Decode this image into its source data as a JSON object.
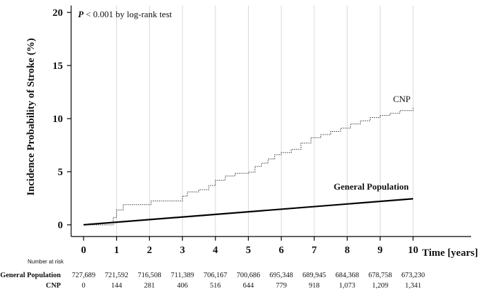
{
  "chart_data": {
    "type": "line",
    "title": "",
    "ylabel": "Incidence Probability of Stroke (%)",
    "xlabel": "Time [years]",
    "xlim": [
      0,
      10
    ],
    "ylim": [
      0,
      20
    ],
    "x_ticks": [
      0,
      1,
      2,
      3,
      4,
      5,
      6,
      7,
      8,
      9,
      10
    ],
    "y_ticks": [
      0,
      5,
      10,
      15,
      20
    ],
    "grid": "vertical",
    "annotation": {
      "p_italic": "P",
      "text": " < 0.001 by log-rank test"
    },
    "series": [
      {
        "name": "CNP",
        "style": "dotted-step",
        "color": "#333333",
        "points": [
          [
            0,
            0
          ],
          [
            0.5,
            0
          ],
          [
            0.9,
            0
          ],
          [
            0.9,
            0.7
          ],
          [
            1.0,
            0.7
          ],
          [
            1.0,
            1.4
          ],
          [
            1.2,
            1.4
          ],
          [
            1.2,
            1.9
          ],
          [
            2.0,
            1.9
          ],
          [
            2.05,
            2.25
          ],
          [
            2.9,
            2.25
          ],
          [
            3.0,
            2.7
          ],
          [
            3.15,
            3.1
          ],
          [
            3.5,
            3.3
          ],
          [
            3.8,
            3.7
          ],
          [
            4.0,
            4.2
          ],
          [
            4.3,
            4.6
          ],
          [
            4.6,
            4.85
          ],
          [
            5.0,
            4.95
          ],
          [
            5.2,
            5.5
          ],
          [
            5.4,
            5.8
          ],
          [
            5.6,
            6.2
          ],
          [
            5.8,
            6.6
          ],
          [
            6.0,
            6.8
          ],
          [
            6.3,
            7.1
          ],
          [
            6.6,
            7.7
          ],
          [
            6.9,
            8.2
          ],
          [
            7.2,
            8.5
          ],
          [
            7.5,
            8.8
          ],
          [
            7.8,
            9.1
          ],
          [
            8.1,
            9.5
          ],
          [
            8.4,
            9.8
          ],
          [
            8.7,
            10.1
          ],
          [
            9.0,
            10.3
          ],
          [
            9.3,
            10.5
          ],
          [
            9.6,
            10.75
          ],
          [
            10.0,
            11.0
          ]
        ]
      },
      {
        "name": "General Population",
        "style": "solid",
        "color": "#000000",
        "points": [
          [
            0,
            0
          ],
          [
            10,
            2.45
          ]
        ]
      }
    ],
    "labels": {
      "cnp": "CNP",
      "general": "General Population"
    },
    "number_at_risk": {
      "title": "Number at risk",
      "rows": [
        {
          "label": "General Population",
          "values": [
            "727,689",
            "721,592",
            "716,508",
            "711,389",
            "706,167",
            "700,686",
            "695,348",
            "689,945",
            "684,368",
            "678,758",
            "673,230"
          ]
        },
        {
          "label": "CNP",
          "values": [
            "0",
            "144",
            "281",
            "406",
            "516",
            "644",
            "779",
            "918",
            "1,073",
            "1,209",
            "1,341"
          ]
        }
      ]
    }
  }
}
